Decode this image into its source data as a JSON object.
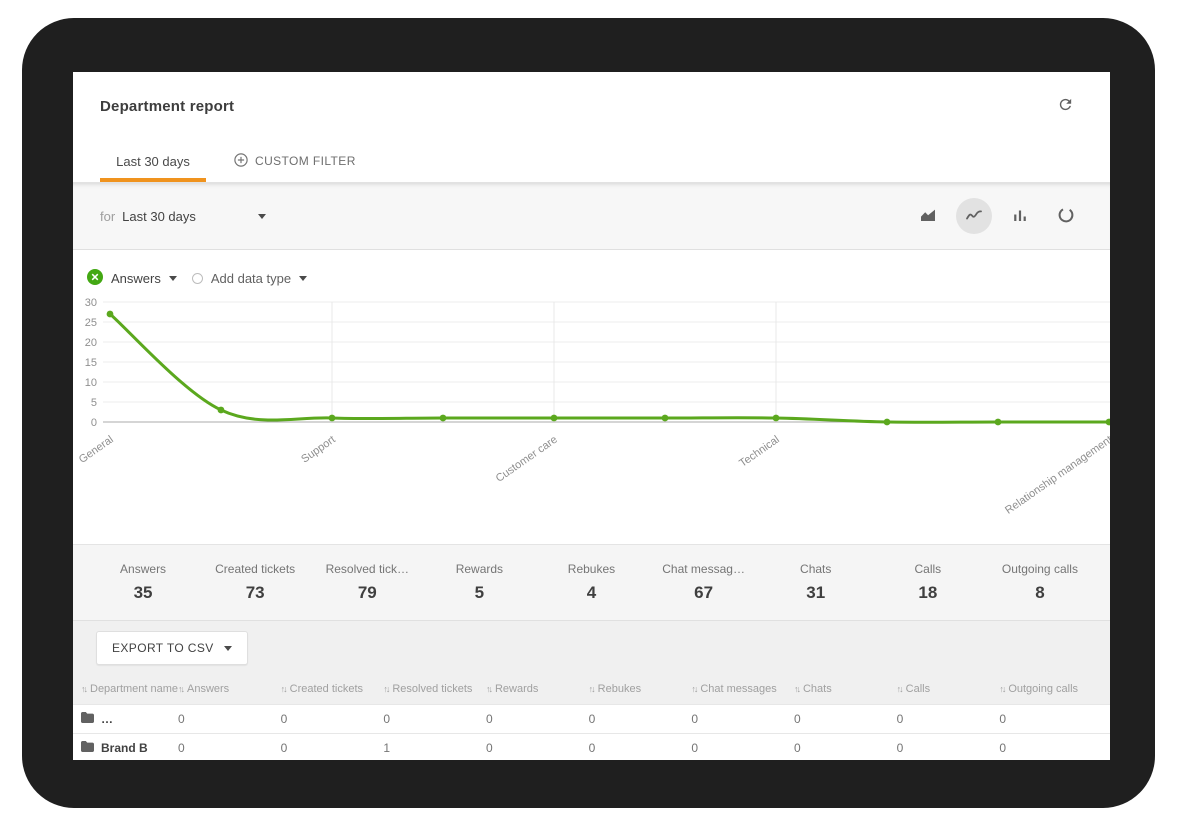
{
  "colors": {
    "accent": "#f0931e",
    "series_green": "#5ba81e",
    "icon_green": "#43a813",
    "icon_gray": "#616161"
  },
  "header": {
    "title": "Department report"
  },
  "tabs": [
    {
      "label": "Last 30 days",
      "active": true
    },
    {
      "label": "CUSTOM FILTER",
      "active": false
    }
  ],
  "filter_bar": {
    "prefix": "for",
    "value": "Last 30 days"
  },
  "chart_toolbar": [
    {
      "icon": "area-chart-icon",
      "selected": false
    },
    {
      "icon": "line-chart-icon",
      "selected": true
    },
    {
      "icon": "bar-chart-icon",
      "selected": false
    },
    {
      "icon": "refresh-circle-icon",
      "selected": false
    }
  ],
  "series_selector": {
    "series_label": "Answers",
    "add_label": "Add data type"
  },
  "chart_data": {
    "type": "line",
    "title": "",
    "x_labels": [
      "General",
      "",
      "Support",
      "",
      "Customer care",
      "",
      "Technical",
      "",
      "",
      "Relationship management"
    ],
    "series": [
      {
        "name": "Answers",
        "color": "#5ba81e",
        "values": [
          27,
          3,
          1,
          1,
          1,
          1,
          1,
          0,
          0,
          0
        ]
      }
    ],
    "ylim": [
      0,
      30
    ],
    "yticks": [
      0,
      5,
      10,
      15,
      20,
      25,
      30
    ],
    "vgrid_indices": [
      2,
      4,
      6
    ],
    "grid": true,
    "legend_position": "top-left"
  },
  "stats": [
    {
      "label": "Answers",
      "value": "35"
    },
    {
      "label": "Created tickets",
      "value": "73"
    },
    {
      "label": "Resolved tick…",
      "value": "79"
    },
    {
      "label": "Rewards",
      "value": "5"
    },
    {
      "label": "Rebukes",
      "value": "4"
    },
    {
      "label": "Chat messag…",
      "value": "67"
    },
    {
      "label": "Chats",
      "value": "31"
    },
    {
      "label": "Calls",
      "value": "18"
    },
    {
      "label": "Outgoing calls",
      "value": "8"
    }
  ],
  "table": {
    "export_label": "EXPORT TO CSV",
    "columns": [
      "Department name",
      "Answers",
      "Created tickets",
      "Resolved tickets",
      "Rewards",
      "Rebukes",
      "Chat messages",
      "Chats",
      "Calls",
      "Outgoing calls"
    ],
    "rows": [
      {
        "name": "…",
        "values": [
          "0",
          "0",
          "0",
          "0",
          "0",
          "0",
          "0",
          "0",
          "0"
        ]
      },
      {
        "name": "Brand B",
        "values": [
          "0",
          "0",
          "1",
          "0",
          "0",
          "0",
          "0",
          "0",
          "0"
        ]
      }
    ]
  }
}
